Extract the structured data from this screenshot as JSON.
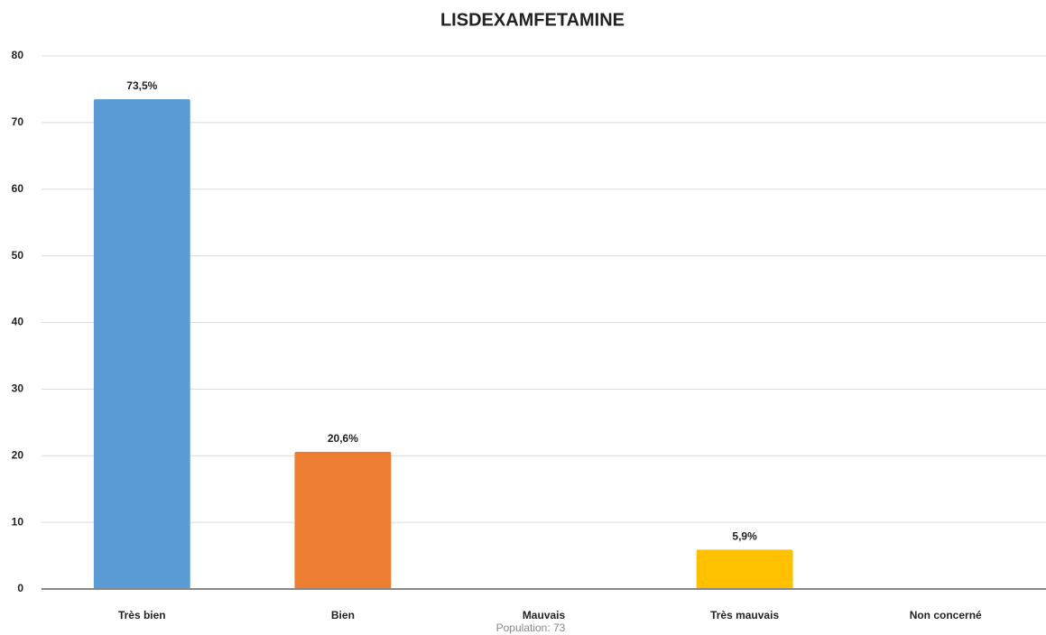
{
  "chart_data": {
    "type": "bar",
    "title": "LISDEXAMFETAMINE",
    "categories": [
      "Très bien",
      "Bien",
      "Mauvais",
      "Très mauvais",
      "Non concerné"
    ],
    "values": [
      73.5,
      20.6,
      0,
      5.9,
      0
    ],
    "value_labels": [
      "73,5%",
      "20,6%",
      null,
      "5,9%",
      null
    ],
    "colors": [
      "#5b9bd5",
      "#ed7d31",
      "#a5a5a5",
      "#ffc000",
      "#4472c4"
    ],
    "ylim": [
      0,
      80
    ],
    "yticks": [
      0,
      10,
      20,
      30,
      40,
      50,
      60,
      70,
      80
    ],
    "grid": true,
    "footnote": "Population: 73"
  }
}
